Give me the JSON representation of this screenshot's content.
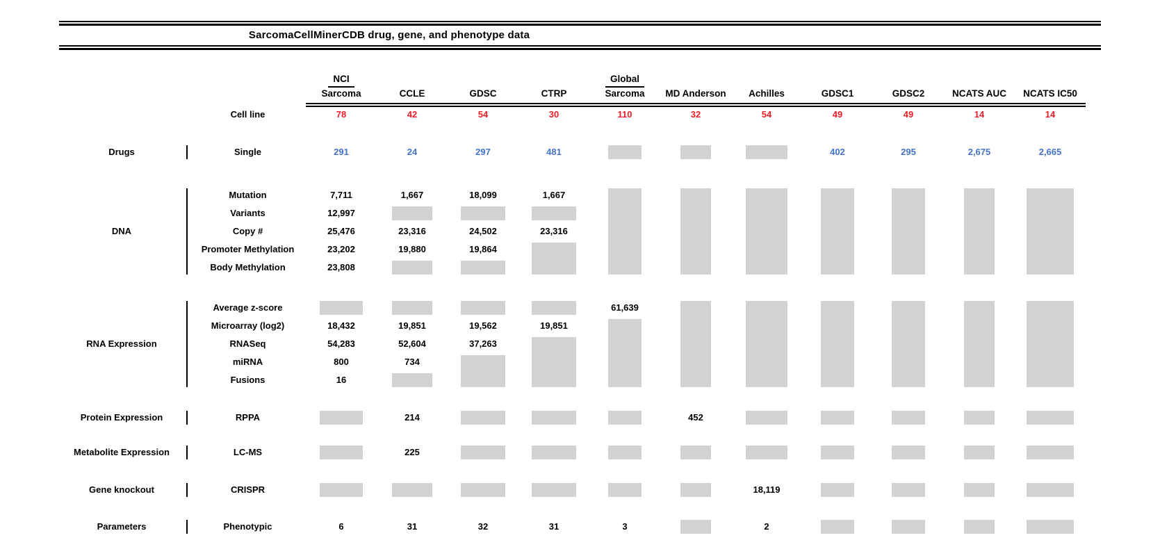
{
  "title": "SarcomaCellMinerCDB drug, gene, and phenotype data",
  "colors": {
    "cell_line_count_red": "#EE1C25",
    "drug_count_blue": "#4472C4",
    "no_data_box_gray": "#D2D2D2",
    "text_black": "#000000"
  },
  "chart_data": {
    "type": "table",
    "title": "SarcomaCellMinerCDB drug, gene, and phenotype data",
    "note_layout": "null cell = gray 'no data' box; vertical runs of null merge into one tall box",
    "columns": [
      {
        "top": "NCI",
        "label": "Sarcoma",
        "name": "NCI Sarcoma"
      },
      {
        "label": "CCLE",
        "name": "CCLE"
      },
      {
        "label": "GDSC",
        "name": "GDSC"
      },
      {
        "label": "CTRP",
        "name": "CTRP"
      },
      {
        "top": "Global",
        "label": "Sarcoma",
        "name": "Global Sarcoma"
      },
      {
        "label": "MD Anderson",
        "name": "MD Anderson"
      },
      {
        "label": "Achilles",
        "name": "Achilles"
      },
      {
        "label": "GDSC1",
        "name": "GDSC1"
      },
      {
        "label": "GDSC2",
        "name": "GDSC2"
      },
      {
        "label": "NCATS AUC",
        "name": "NCATS AUC"
      },
      {
        "label": "NCATS IC50",
        "name": "NCATS IC50"
      }
    ],
    "cell_line_row": {
      "label": "Cell line",
      "value_color": "red",
      "values": [
        "78",
        "42",
        "54",
        "30",
        "110",
        "32",
        "54",
        "49",
        "49",
        "14",
        "14"
      ]
    },
    "sections": [
      {
        "category": "Drugs",
        "rows": [
          {
            "label": "Single",
            "value_color": "blue",
            "cells": [
              "291",
              "24",
              "297",
              "481",
              null,
              null,
              null,
              "402",
              "295",
              "2,675",
              "2,665"
            ]
          }
        ]
      },
      {
        "category": "DNA",
        "rows": [
          {
            "label": "Mutation",
            "cells": [
              "7,711",
              "1,667",
              "18,099",
              "1,667",
              null,
              null,
              null,
              null,
              null,
              null,
              null
            ]
          },
          {
            "label": "Variants",
            "cells": [
              "12,997",
              null,
              null,
              null,
              null,
              null,
              null,
              null,
              null,
              null,
              null
            ]
          },
          {
            "label": "Copy #",
            "cells": [
              "25,476",
              "23,316",
              "24,502",
              "23,316",
              null,
              null,
              null,
              null,
              null,
              null,
              null
            ]
          },
          {
            "label": "Promoter Methylation",
            "cells": [
              "23,202",
              "19,880",
              "19,864",
              null,
              null,
              null,
              null,
              null,
              null,
              null,
              null
            ]
          },
          {
            "label": "Body Methylation",
            "cells": [
              "23,808",
              null,
              null,
              null,
              null,
              null,
              null,
              null,
              null,
              null,
              null
            ]
          }
        ]
      },
      {
        "category": "RNA Expression",
        "rows": [
          {
            "label": "Average z-score",
            "cells": [
              null,
              null,
              null,
              null,
              "61,639",
              null,
              null,
              null,
              null,
              null,
              null
            ]
          },
          {
            "label": "Microarray (log2)",
            "cells": [
              "18,432",
              "19,851",
              "19,562",
              "19,851",
              null,
              null,
              null,
              null,
              null,
              null,
              null
            ]
          },
          {
            "label": "RNASeq",
            "cells": [
              "54,283",
              "52,604",
              "37,263",
              null,
              null,
              null,
              null,
              null,
              null,
              null,
              null
            ]
          },
          {
            "label": "miRNA",
            "cells": [
              "800",
              "734",
              null,
              null,
              null,
              null,
              null,
              null,
              null,
              null,
              null
            ]
          },
          {
            "label": "Fusions",
            "cells": [
              "16",
              null,
              null,
              null,
              null,
              null,
              null,
              null,
              null,
              null,
              null
            ]
          }
        ]
      },
      {
        "category": "Protein Expression",
        "rows": [
          {
            "label": "RPPA",
            "cells": [
              null,
              "214",
              null,
              null,
              null,
              "452",
              null,
              null,
              null,
              null,
              null
            ]
          }
        ]
      },
      {
        "category": "Metabolite Expression",
        "rows": [
          {
            "label": "LC-MS",
            "cells": [
              null,
              "225",
              null,
              null,
              null,
              null,
              null,
              null,
              null,
              null,
              null
            ]
          }
        ]
      },
      {
        "category": "Gene knockout",
        "rows": [
          {
            "label": "CRISPR",
            "cells": [
              null,
              null,
              null,
              null,
              null,
              null,
              "18,119",
              null,
              null,
              null,
              null
            ]
          }
        ]
      },
      {
        "category": "Parameters",
        "rows": [
          {
            "label": "Phenotypic",
            "cells": [
              "6",
              "31",
              "32",
              "31",
              "3",
              null,
              "2",
              null,
              null,
              null,
              null
            ]
          }
        ]
      }
    ]
  }
}
